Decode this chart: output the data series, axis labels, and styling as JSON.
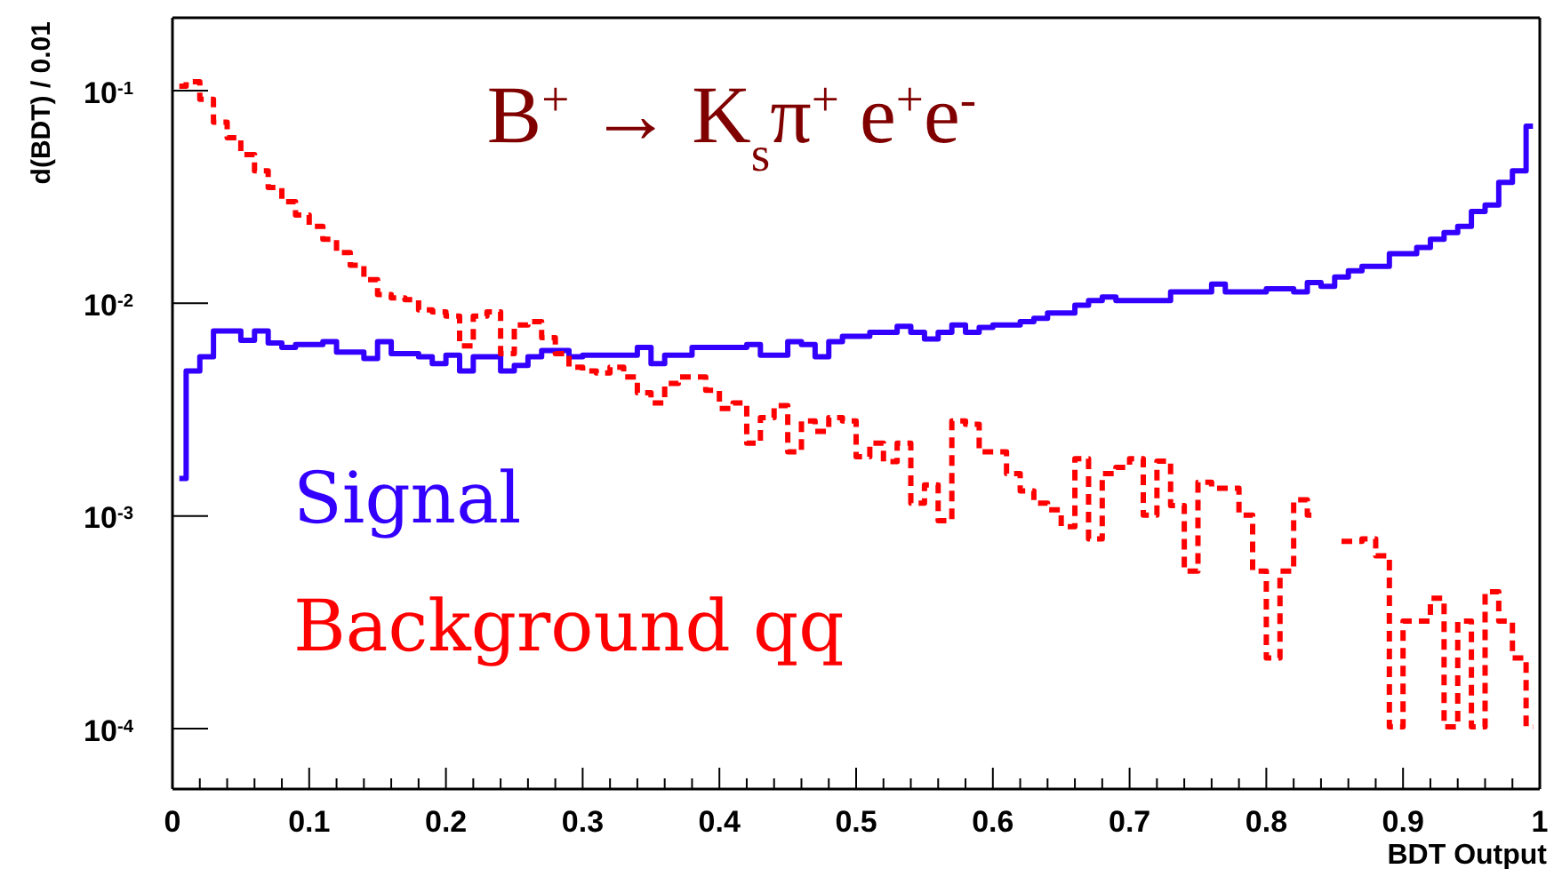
{
  "chart_data": {
    "type": "step",
    "title": "B$^{+}$ → K$_{s}$π$^{+}$ e$^{+}$e$^{-}$",
    "xlabel": "BDT Output",
    "ylabel": "d(BDT) / 0.01",
    "log": "y",
    "grid": false,
    "legend": "bottom left",
    "x": [
      0.005,
      0.015,
      0.025,
      0.035,
      0.045,
      0.055,
      0.065,
      0.075,
      0.085,
      0.095,
      0.105,
      0.115,
      0.125,
      0.135,
      0.145,
      0.155,
      0.165,
      0.175,
      0.185,
      0.195,
      0.205,
      0.215,
      0.225,
      0.235,
      0.245,
      0.255,
      0.265,
      0.275,
      0.285,
      0.295,
      0.305,
      0.315,
      0.325,
      0.335,
      0.345,
      0.355,
      0.365,
      0.375,
      0.385,
      0.395,
      0.405,
      0.415,
      0.425,
      0.435,
      0.445,
      0.455,
      0.465,
      0.475,
      0.485,
      0.495,
      0.505,
      0.515,
      0.525,
      0.535,
      0.545,
      0.555,
      0.565,
      0.575,
      0.585,
      0.595,
      0.605,
      0.615,
      0.625,
      0.635,
      0.645,
      0.655,
      0.665,
      0.675,
      0.685,
      0.695,
      0.705,
      0.715,
      0.725,
      0.735,
      0.745,
      0.755,
      0.765,
      0.775,
      0.785,
      0.795,
      0.805,
      0.815,
      0.825,
      0.835,
      0.845,
      0.855,
      0.865,
      0.875,
      0.885,
      0.895,
      0.905,
      0.915,
      0.925,
      0.935,
      0.945,
      0.955,
      0.965,
      0.975,
      0.985,
      0.995
    ],
    "series": [
      {
        "name": "Signal",
        "color": "#3300ff",
        "line_style": "solid",
        "values": [
          0.0015,
          0.0048,
          0.0056,
          0.0074,
          0.0074,
          0.0067,
          0.0074,
          0.0065,
          0.0062,
          0.0064,
          0.0064,
          0.0066,
          0.0059,
          0.0059,
          0.0055,
          0.0066,
          0.0058,
          0.0058,
          0.0056,
          0.0052,
          0.0057,
          0.0048,
          0.0056,
          0.0056,
          0.0048,
          0.0051,
          0.0056,
          0.006,
          0.006,
          0.0056,
          0.0057,
          0.0057,
          0.0057,
          0.0057,
          0.0062,
          0.0052,
          0.0057,
          0.0057,
          0.0062,
          0.0062,
          0.0062,
          0.0062,
          0.0064,
          0.0057,
          0.0057,
          0.0066,
          0.0064,
          0.0056,
          0.0066,
          0.007,
          0.007,
          0.0073,
          0.0073,
          0.0078,
          0.0073,
          0.0068,
          0.0073,
          0.0079,
          0.0073,
          0.0077,
          0.0079,
          0.0079,
          0.0082,
          0.0085,
          0.009,
          0.009,
          0.0098,
          0.0103,
          0.0107,
          0.0103,
          0.0103,
          0.0103,
          0.0103,
          0.0113,
          0.0113,
          0.0113,
          0.0123,
          0.0113,
          0.0113,
          0.0113,
          0.0117,
          0.0117,
          0.0113,
          0.0125,
          0.012,
          0.0133,
          0.0142,
          0.0149,
          0.0149,
          0.0171,
          0.0171,
          0.0183,
          0.02,
          0.0215,
          0.023,
          0.027,
          0.029,
          0.037,
          0.042,
          0.068
        ]
      },
      {
        "name": "Background qq",
        "color": "#ff0000",
        "line_style": "dashed",
        "values": [
          0.105,
          0.11,
          0.091,
          0.071,
          0.06,
          0.05,
          0.042,
          0.035,
          0.03,
          0.026,
          0.023,
          0.02,
          0.0173,
          0.0151,
          0.0129,
          0.011,
          0.0106,
          0.0104,
          0.0093,
          0.0091,
          0.0087,
          0.0063,
          0.0087,
          0.0091,
          0.0058,
          0.0079,
          0.0082,
          0.0069,
          0.0058,
          0.005,
          0.0048,
          0.0047,
          0.005,
          0.0045,
          0.0038,
          0.0034,
          0.0042,
          0.0045,
          0.0045,
          0.0039,
          0.0032,
          0.0034,
          0.0022,
          0.0029,
          0.0033,
          0.002,
          0.0028,
          0.0025,
          0.0029,
          0.0028,
          0.0019,
          0.0022,
          0.0018,
          0.0022,
          0.00115,
          0.0014,
          0.00095,
          0.0028,
          0.0027,
          0.002,
          0.002,
          0.00158,
          0.00131,
          0.00115,
          0.00107,
          0.00089,
          0.00186,
          0.00078,
          0.00158,
          0.00169,
          0.00186,
          0.00101,
          0.00181,
          0.00112,
          0.00055,
          0.00144,
          0.00135,
          0.00135,
          0.00101,
          0.00055,
          0.000215,
          0.00055,
          0.00119,
          0.00101,
          null,
          0.00076,
          0.00076,
          0.00078,
          0.00065,
          0.000102,
          0.00032,
          0.00032,
          0.00041,
          0.000102,
          0.00032,
          0.000102,
          0.00044,
          0.00032,
          0.000215,
          0.000102
        ]
      }
    ],
    "xlim": [
      0,
      1
    ],
    "xticks": [
      0,
      {
        "value": 0.02,
        "label": null
      },
      {
        "value": 0.04,
        "label": null
      },
      {
        "value": 0.06,
        "label": null
      },
      {
        "value": 0.08,
        "label": null
      },
      0.1,
      {
        "value": 0.12,
        "label": null
      },
      {
        "value": 0.14,
        "label": null
      },
      {
        "value": 0.16,
        "label": null
      },
      {
        "value": 0.18,
        "label": null
      },
      0.2,
      {
        "value": 0.22,
        "label": null
      },
      {
        "value": 0.24,
        "label": null
      },
      {
        "value": 0.26,
        "label": null
      },
      {
        "value": 0.28,
        "label": null
      },
      0.3,
      {
        "value": 0.32,
        "label": null
      },
      {
        "value": 0.34,
        "label": null
      },
      {
        "value": 0.36,
        "label": null
      },
      {
        "value": 0.38,
        "label": null
      },
      0.4,
      {
        "value": 0.42,
        "label": null
      },
      {
        "value": 0.44,
        "label": null
      },
      {
        "value": 0.46,
        "label": null
      },
      {
        "value": 0.48,
        "label": null
      },
      0.5,
      {
        "value": 0.52,
        "label": null
      },
      {
        "value": 0.54,
        "label": null
      },
      {
        "value": 0.56,
        "label": null
      },
      {
        "value": 0.58,
        "label": null
      },
      0.6,
      {
        "value": 0.62,
        "label": null
      },
      {
        "value": 0.64,
        "label": null
      },
      {
        "value": 0.66,
        "label": null
      },
      {
        "value": 0.68,
        "label": null
      },
      0.7,
      {
        "value": 0.72,
        "label": null
      },
      {
        "value": 0.74,
        "label": null
      },
      {
        "value": 0.76,
        "label": null
      },
      {
        "value": 0.78,
        "label": null
      },
      0.8,
      {
        "value": 0.82,
        "label": null
      },
      {
        "value": 0.84,
        "label": null
      },
      {
        "value": 0.86,
        "label": null
      },
      {
        "value": 0.88,
        "label": null
      },
      0.9,
      {
        "value": 0.92,
        "label": null
      },
      {
        "value": 0.94,
        "label": null
      },
      {
        "value": 0.96,
        "label": null
      },
      {
        "value": 0.98,
        "label": null
      },
      1
    ],
    "ylim": [
      5.2e-05,
      0.22
    ],
    "yticks": [
      {
        "value": 0.0001,
        "label": "10$^{-4}$"
      },
      {
        "value": 0.001,
        "label": "10$^{-3}$"
      },
      {
        "value": 0.01,
        "label": "10$^{-2}$"
      },
      {
        "value": 0.1,
        "label": "10$^{-1}$"
      }
    ]
  }
}
